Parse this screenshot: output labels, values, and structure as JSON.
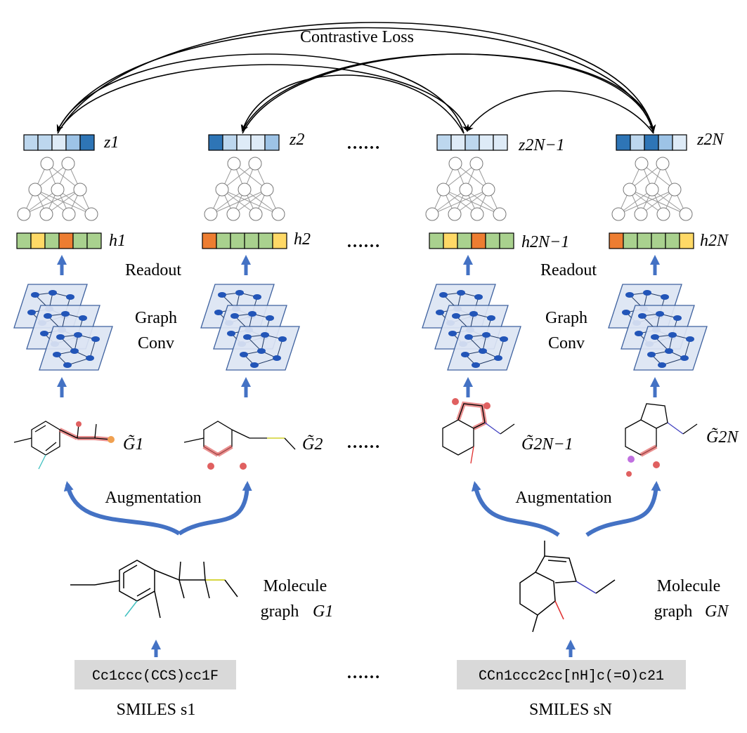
{
  "title": "Contrastive Loss",
  "ellipsis": "……",
  "labels": {
    "readout": "Readout",
    "graph_conv_1": "Graph",
    "graph_conv_2": "Conv",
    "augmentation": "Augmentation",
    "molecule_graph_1": "Molecule",
    "molecule_graph_2": "graph"
  },
  "embeddings_z": [
    "z1",
    "z2",
    "z2N−1",
    "z2N"
  ],
  "embeddings_h": [
    "h1",
    "h2",
    "h2N−1",
    "h2N"
  ],
  "augmented_graphs": [
    "G̃1",
    "G̃2",
    "G̃2N−1",
    "G̃2N"
  ],
  "molecule_graphs": [
    "G1",
    "GN"
  ],
  "smiles": [
    {
      "label": "SMILES s1",
      "string": "Cc1ccc(CCS)cc1F"
    },
    {
      "label": "SMILES sN",
      "string": "CCn1ccc2cc[nH]c(=O)c21"
    }
  ],
  "colors": {
    "arrow_blue": "#4472C4",
    "z_cells": [
      [
        "#BDD7EE",
        "#BDD7EE",
        "#DEEBF7",
        "#9DC3E6",
        "#2E75B6"
      ],
      [
        "#2E75B6",
        "#BDD7EE",
        "#DEEBF7",
        "#DEEBF7",
        "#9DC3E6"
      ],
      [
        "#BDD7EE",
        "#DEEBF7",
        "#BDD7EE",
        "#DEEBF7",
        "#DEEBF7"
      ],
      [
        "#2E75B6",
        "#BDD7EE",
        "#2E75B6",
        "#9DC3E6",
        "#DEEBF7"
      ]
    ],
    "h_cells": [
      [
        "#A9D18E",
        "#FFD966",
        "#A9D18E",
        "#ED7D31",
        "#A9D18E",
        "#A9D18E"
      ],
      [
        "#ED7D31",
        "#A9D18E",
        "#A9D18E",
        "#A9D18E",
        "#A9D18E",
        "#FFD966"
      ],
      [
        "#A9D18E",
        "#FFD966",
        "#A9D18E",
        "#ED7D31",
        "#A9D18E",
        "#A9D18E"
      ],
      [
        "#ED7D31",
        "#A9D18E",
        "#A9D18E",
        "#A9D18E",
        "#A9D18E",
        "#FFD966"
      ]
    ]
  }
}
